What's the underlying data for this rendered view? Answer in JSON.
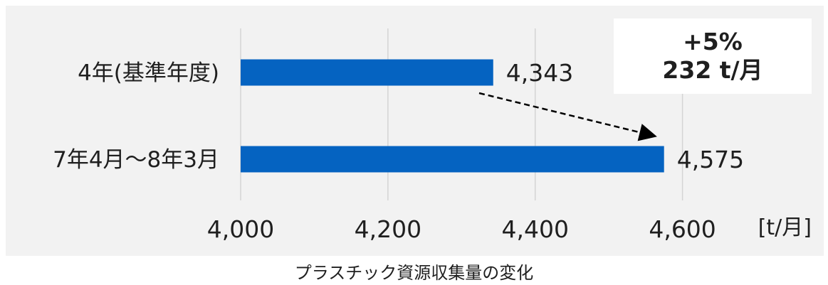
{
  "chart_data": {
    "type": "bar",
    "orientation": "horizontal",
    "categories": [
      "4年(基準年度)",
      "7年4月～8年3月"
    ],
    "values": [
      4343,
      4575
    ],
    "value_labels": [
      "4,343",
      "4,575"
    ],
    "xlim": [
      4000,
      4700
    ],
    "xticks": [
      4000,
      4200,
      4400,
      4600
    ],
    "xtick_labels": [
      "4,000",
      "4,200",
      "4,400",
      "4,600"
    ],
    "unit_label": "[t/月]",
    "grid": "vertical",
    "bar_color": "#0563c1",
    "annotation": {
      "line1": "+5%",
      "line2": "232 t/月"
    }
  },
  "caption": "プラスチック資源収集量の変化"
}
